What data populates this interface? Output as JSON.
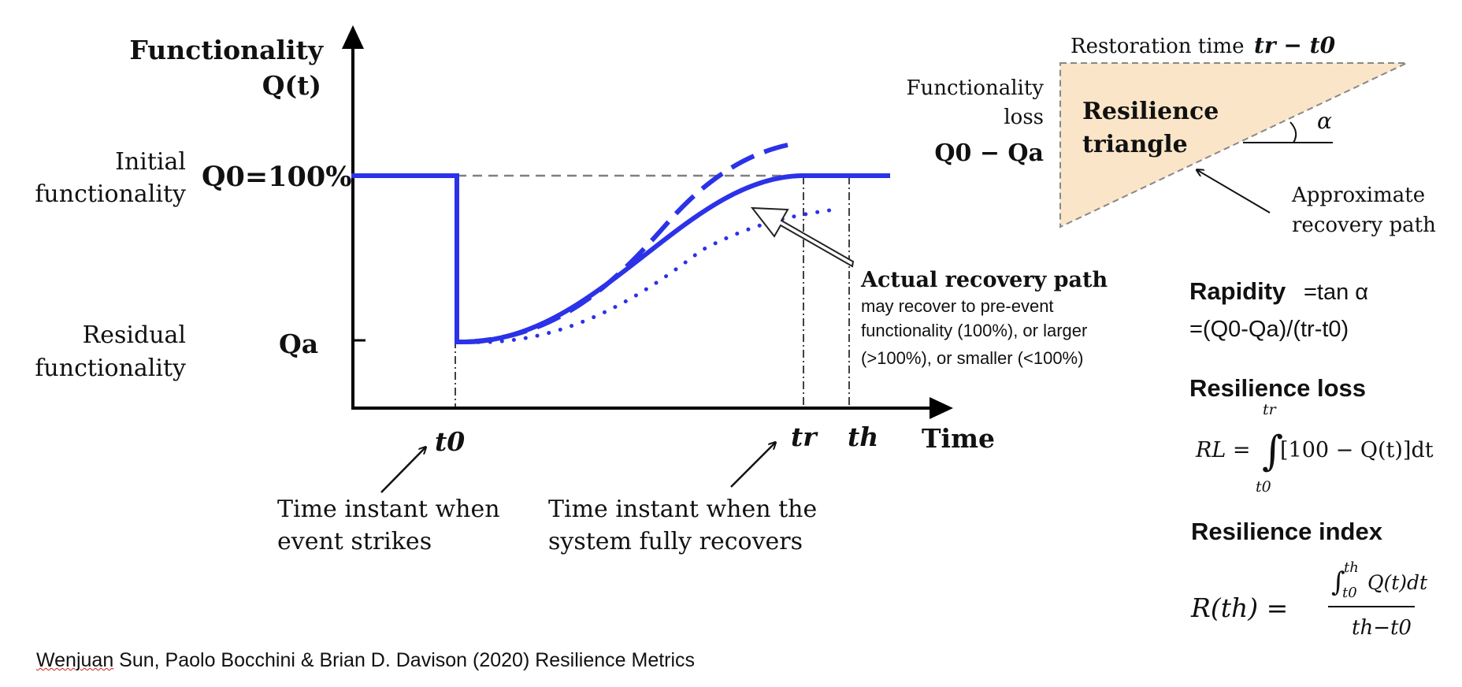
{
  "diagram": {
    "y_axis_label_line1": "Functionality",
    "y_axis_label_line2": "Q(t)",
    "x_axis_label": "Time",
    "initial_label_line1": "Initial",
    "initial_label_line2": "functionality",
    "q0_label": "Q0=100%",
    "residual_label_line1": "Residual",
    "residual_label_line2": "functionality",
    "qa_label": "Qa",
    "t0_label": "t0",
    "tr_label": "tr",
    "th_label": "th",
    "t0_note_line1": "Time instant when",
    "t0_note_line2": "event strikes",
    "tr_note_line1": "Time instant when the",
    "tr_note_line2": "system fully recovers",
    "actual_path_title": "Actual recovery path",
    "actual_path_line1": "may recover to pre-event",
    "actual_path_line2": "functionality (100%), or larger",
    "actual_path_line3": "(>100%), or smaller (<100%)",
    "curve_color": "#2b32e8"
  },
  "triangle": {
    "restoration_label": "Restoration time",
    "restoration_formula": "tr − t0",
    "loss_label_line1": "Functionality",
    "loss_label_line2": "loss",
    "loss_formula": "Q0 − Qa",
    "title_line1": "Resilience",
    "title_line2": "triangle",
    "angle_symbol": "α",
    "approx_line1": "Approximate",
    "approx_line2": "recovery path",
    "fill_color": "#fbe5c8"
  },
  "metrics": {
    "rapidity_title": "Rapidity",
    "rapidity_def": "=tan α",
    "rapidity_formula": "=(Q0-Qa)/(tr-t0)",
    "loss_title": "Resilience loss",
    "loss_formula_lhs": "RL =",
    "loss_integral_upper": "tr",
    "loss_integral_lower": "t0",
    "loss_formula_body": "[100 − Q(t)]dt",
    "index_title": "Resilience index",
    "index_lhs": "R(th) =",
    "index_numerator": "Q(t)dt",
    "index_numerator_upper": "th",
    "index_numerator_lower": "t0",
    "index_denominator": "th−t0"
  },
  "citation": {
    "author_first": "Wenjuan",
    "rest": " Sun, Paolo Bocchini & Brian D. Davison (2020) Resilience Metrics"
  }
}
